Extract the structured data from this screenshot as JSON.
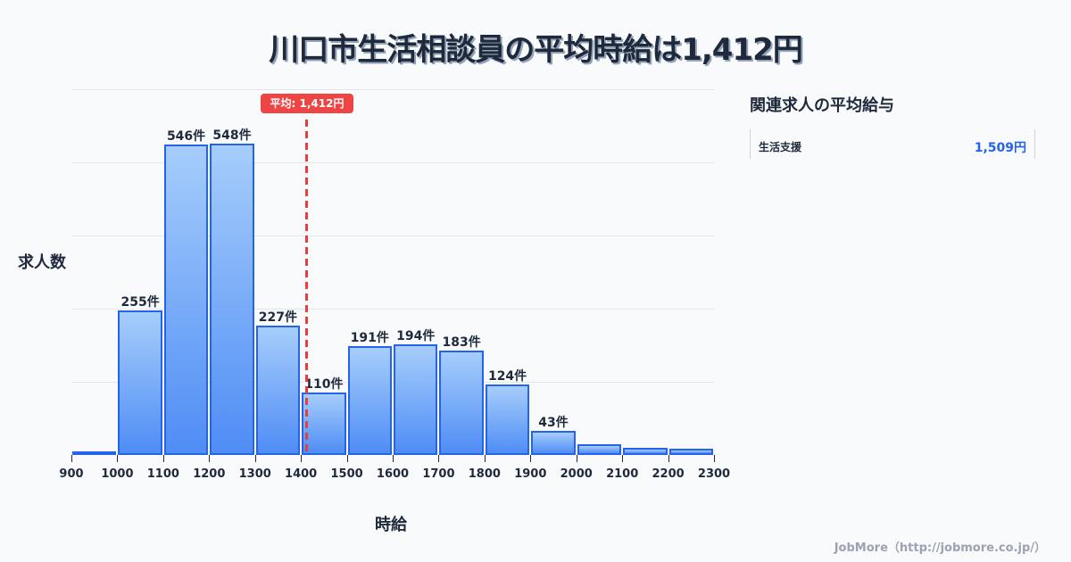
{
  "title": "川口市生活相談員の平均時給は1,412円",
  "chart_data": {
    "type": "bar",
    "title": "川口市生活相談員の平均時給は1,412円",
    "xlabel": "時給",
    "ylabel": "求人数",
    "categories": [
      "900-1000",
      "1000-1100",
      "1100-1200",
      "1200-1300",
      "1300-1400",
      "1400-1500",
      "1500-1600",
      "1600-1700",
      "1700-1800",
      "1800-1900",
      "1900-2000",
      "2000-2100",
      "2100-2200",
      "2200-2300"
    ],
    "values": [
      6,
      255,
      546,
      548,
      227,
      110,
      191,
      194,
      183,
      124,
      43,
      19,
      12,
      11
    ],
    "labels": [
      "",
      "255件",
      "546件",
      "548件",
      "227件",
      "110件",
      "191件",
      "194件",
      "183件",
      "124件",
      "43件",
      "",
      "",
      ""
    ],
    "x_ticks": [
      "900",
      "1000",
      "1100",
      "1200",
      "1300",
      "1400",
      "1500",
      "1600",
      "1700",
      "1800",
      "1900",
      "2000",
      "2100",
      "2200",
      "2300"
    ],
    "ylim": [
      0,
      644
    ],
    "grid": true,
    "annotation": {
      "label": "平均: 1,412円",
      "x": 1412,
      "style": "dashed-red"
    },
    "colors": {
      "bar_border": "#2563eb",
      "bar_top": "#a6cdfb",
      "bar_bottom": "#4f8df5",
      "avg_line": "#ef4444"
    }
  },
  "side_panel": {
    "title": "関連求人の平均給与",
    "items": [
      {
        "name": "生活支援",
        "value": "1,509円"
      }
    ]
  },
  "footer": "JobMore（http://jobmore.co.jp/）"
}
